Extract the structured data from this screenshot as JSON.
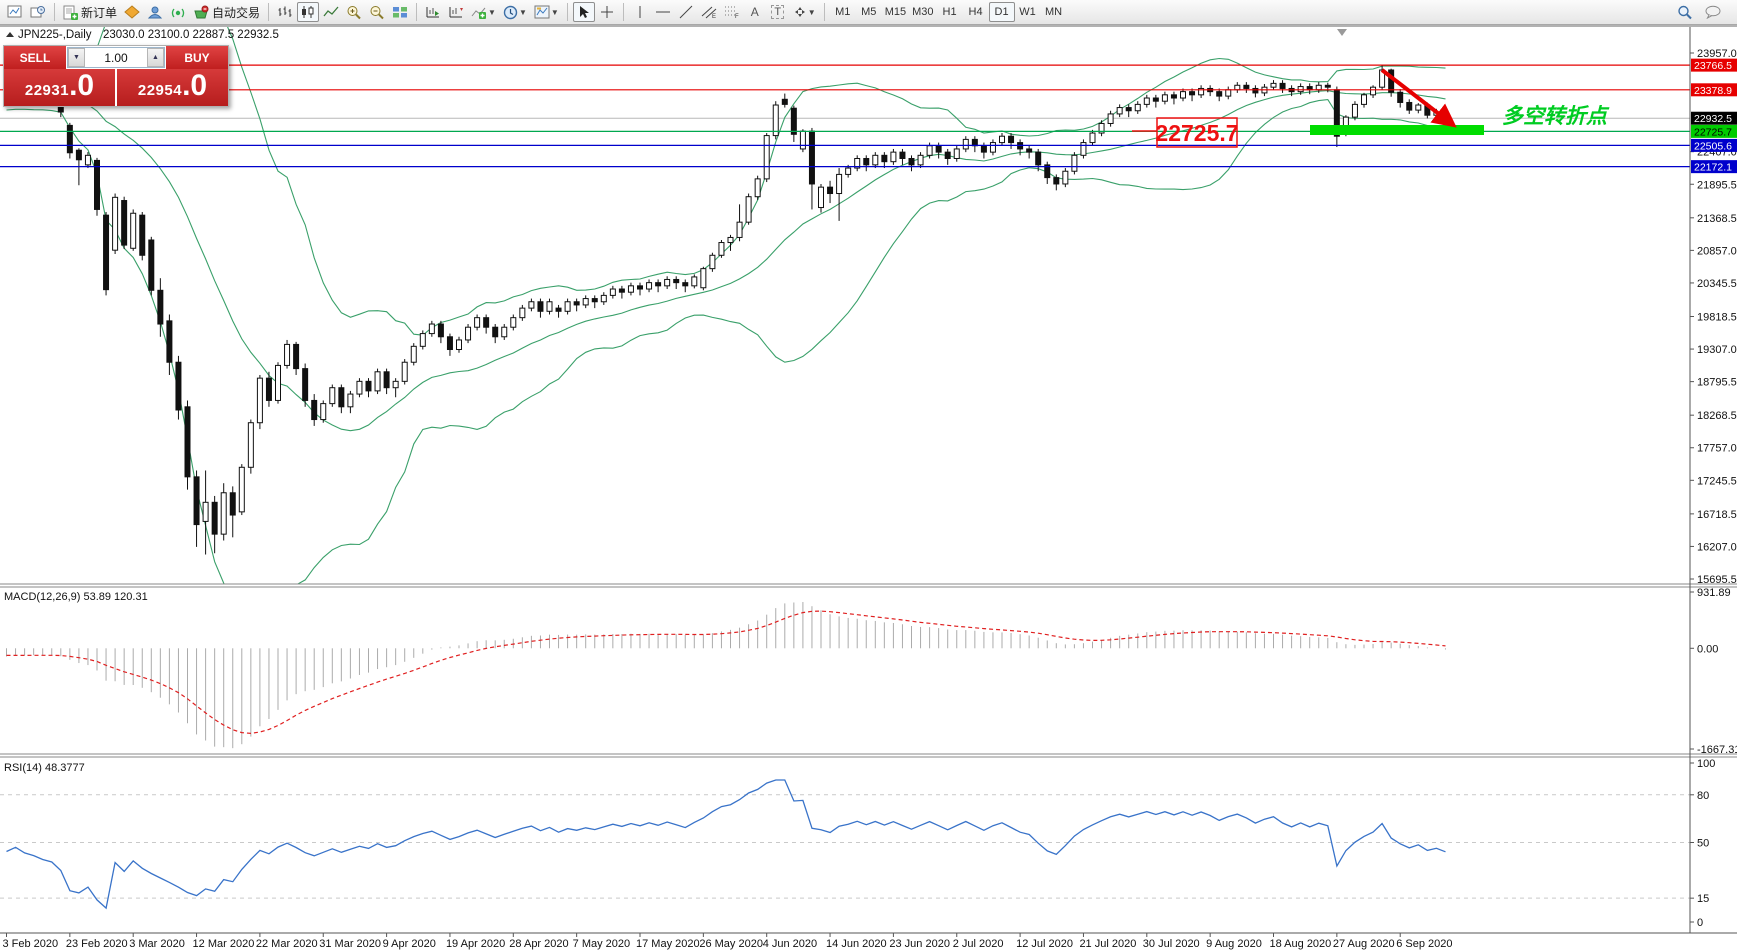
{
  "toolbar": {
    "new_order_label": "新订单",
    "autotrading_label": "自动交易",
    "timeframes": [
      "M1",
      "M5",
      "M15",
      "M30",
      "H1",
      "H4",
      "D1",
      "W1",
      "MN"
    ],
    "active_timeframe": "D1"
  },
  "chart": {
    "title": "JPN225-,Daily",
    "ohlc_line": "23030.0 23100.0 22887.5 22932.5",
    "current_price": 22932.5
  },
  "trade_panel": {
    "sell_label": "SELL",
    "buy_label": "BUY",
    "volume": "1.00",
    "sell_price_main": "22931",
    "sell_price_big": ".0",
    "buy_price_main": "22954",
    "buy_price_big": ".0"
  },
  "price_axis": {
    "ticks": [
      "23957.0",
      "22407.0",
      "21895.5",
      "21368.5",
      "20857.0",
      "20345.5",
      "19818.5",
      "19307.0",
      "18795.5",
      "18268.5",
      "17757.0",
      "17245.5",
      "16718.5",
      "16207.0",
      "15695.5"
    ],
    "badges": [
      {
        "text": "23766.5",
        "price": 23766.5,
        "bg": "#e60000",
        "fg": "#ffffff"
      },
      {
        "text": "23378.9",
        "price": 23378.9,
        "bg": "#e60000",
        "fg": "#ffffff"
      },
      {
        "text": "22932.5",
        "price": 22932.5,
        "bg": "#000000",
        "fg": "#ffffff"
      },
      {
        "text": "22725.7",
        "price": 22725.7,
        "bg": "#00cc00",
        "fg": "#000000"
      },
      {
        "text": "22505.6",
        "price": 22505.6,
        "bg": "#0000cc",
        "fg": "#ffffff"
      },
      {
        "text": "22172.1",
        "price": 22172.1,
        "bg": "#0000cc",
        "fg": "#ffffff"
      }
    ]
  },
  "levels": [
    {
      "price": 23766.5,
      "color": "#e60000"
    },
    {
      "price": 23378.9,
      "color": "#e60000"
    },
    {
      "price": 22725.7,
      "color": "#00a84f"
    },
    {
      "price": 22505.6,
      "color": "#0000cc"
    },
    {
      "price": 22172.1,
      "color": "#0000cc"
    }
  ],
  "annotations": {
    "price_box_text": "22725.7",
    "note_text": "多空转折点",
    "note_color": "#00cc22",
    "box_color": "#ee1111",
    "zone_color": "#00dd00",
    "arrow_color": "#e60000"
  },
  "indicators": {
    "macd_label": "MACD(12,26,9) 53.89 120.31",
    "macd_axis": [
      "931.89",
      "0.00",
      "-1667.31"
    ],
    "macd_params": [
      12,
      26,
      9
    ],
    "rsi_label": "RSI(14) 48.3777",
    "rsi_axis": [
      "100",
      "80",
      "50",
      "15",
      "0"
    ],
    "rsi_levels": [
      80,
      50,
      15
    ],
    "rsi_period": 14,
    "bollinger": {
      "period": 20,
      "deviation": 2,
      "color": "#3aa06a"
    }
  },
  "time_axis": {
    "labels": [
      "3 Feb 2020",
      "23 Feb 2020",
      "3 Mar 2020",
      "12 Mar 2020",
      "22 Mar 2020",
      "31 Mar 2020",
      "9 Apr 2020",
      "19 Apr 2020",
      "28 Apr 2020",
      "7 May 2020",
      "17 May 2020",
      "26 May 2020",
      "4 Jun 2020",
      "14 Jun 2020",
      "23 Jun 2020",
      "2 Jul 2020",
      "12 Jul 2020",
      "21 Jul 2020",
      "30 Jul 2020",
      "9 Aug 2020",
      "18 Aug 2020",
      "27 Aug 2020",
      "6 Sep 2020"
    ]
  },
  "chart_data": {
    "type": "candlestick",
    "symbol": "JPN225-",
    "timeframe": "Daily",
    "last_ohlc": {
      "open": 23030.0,
      "high": 23100.0,
      "low": 22887.5,
      "close": 22932.5
    },
    "price_range": [
      15695.5,
      23957.0
    ],
    "warmup_bars": 30,
    "candles": [
      [
        23620,
        23720,
        23560,
        23680
      ],
      [
        23680,
        23800,
        23630,
        23760
      ],
      [
        23760,
        23870,
        23710,
        23830
      ],
      [
        23830,
        23940,
        23780,
        23900
      ],
      [
        23900,
        24000,
        23850,
        23960
      ],
      [
        23960,
        24060,
        23910,
        24020
      ],
      [
        24020,
        24070,
        23900,
        23950
      ],
      [
        23950,
        24080,
        23900,
        24040
      ],
      [
        24040,
        24090,
        23920,
        23970
      ],
      [
        23970,
        24020,
        23830,
        23880
      ],
      [
        23880,
        23930,
        23750,
        23800
      ],
      [
        23800,
        23910,
        23750,
        23860
      ],
      [
        23860,
        23900,
        23730,
        23780
      ],
      [
        23780,
        23830,
        23650,
        23700
      ],
      [
        23700,
        23810,
        23650,
        23760
      ],
      [
        23760,
        23800,
        23610,
        23660
      ],
      [
        23660,
        23770,
        23610,
        23720
      ],
      [
        23720,
        23760,
        23570,
        23620
      ],
      [
        23620,
        23670,
        23510,
        23560
      ],
      [
        23560,
        23670,
        23510,
        23620
      ],
      [
        23620,
        23660,
        23470,
        23520
      ],
      [
        23520,
        23570,
        23400,
        23450
      ],
      [
        23450,
        23500,
        23330,
        23380
      ],
      [
        23380,
        23430,
        23250,
        23300
      ],
      [
        23300,
        23410,
        23250,
        23360
      ],
      [
        23360,
        23400,
        23210,
        23260
      ],
      [
        23260,
        23310,
        23130,
        23180
      ],
      [
        23180,
        23290,
        23130,
        23240
      ],
      [
        23240,
        23280,
        23110,
        23160
      ],
      [
        23160,
        23330,
        23110,
        23280
      ],
      [
        23280,
        23400,
        23230,
        23350
      ],
      [
        23350,
        23450,
        23300,
        23400
      ],
      [
        23400,
        23440,
        23270,
        23320
      ],
      [
        23320,
        23370,
        23230,
        23280
      ],
      [
        23280,
        23330,
        23170,
        23220
      ],
      [
        23220,
        23270,
        23130,
        23180
      ],
      [
        23180,
        23210,
        22950,
        23030
      ],
      [
        22820,
        22860,
        22300,
        22390
      ],
      [
        22430,
        22460,
        21880,
        22280
      ],
      [
        22200,
        22400,
        22150,
        22350
      ],
      [
        22270,
        22310,
        21400,
        21500
      ],
      [
        21410,
        21460,
        20150,
        20240
      ],
      [
        20860,
        21750,
        20800,
        21690
      ],
      [
        21640,
        21700,
        20880,
        20940
      ],
      [
        20890,
        21500,
        20850,
        21440
      ],
      [
        21410,
        21460,
        20700,
        20780
      ],
      [
        21020,
        21070,
        20150,
        20230
      ],
      [
        20230,
        20420,
        19500,
        19700
      ],
      [
        19750,
        19850,
        18900,
        19100
      ],
      [
        19100,
        19200,
        18200,
        18350
      ],
      [
        18400,
        18500,
        17100,
        17300
      ],
      [
        17300,
        17400,
        16200,
        16550
      ],
      [
        16600,
        17400,
        16080,
        16900
      ],
      [
        16900,
        17000,
        16100,
        16400
      ],
      [
        16400,
        17200,
        16300,
        17050
      ],
      [
        17050,
        17150,
        16350,
        16700
      ],
      [
        16750,
        17500,
        16700,
        17450
      ],
      [
        17450,
        18200,
        17350,
        18150
      ],
      [
        18150,
        18900,
        18050,
        18850
      ],
      [
        18850,
        18950,
        18400,
        18500
      ],
      [
        18500,
        19100,
        18450,
        19050
      ],
      [
        19050,
        19450,
        19000,
        19380
      ],
      [
        19380,
        19420,
        18900,
        19000
      ],
      [
        19000,
        19080,
        18400,
        18500
      ],
      [
        18500,
        18600,
        18100,
        18200
      ],
      [
        18200,
        18500,
        18150,
        18450
      ],
      [
        18450,
        18750,
        18400,
        18700
      ],
      [
        18700,
        18750,
        18300,
        18400
      ],
      [
        18400,
        18650,
        18300,
        18600
      ],
      [
        18600,
        18850,
        18550,
        18800
      ],
      [
        18800,
        18850,
        18550,
        18650
      ],
      [
        18650,
        19000,
        18600,
        18950
      ],
      [
        18950,
        19000,
        18600,
        18700
      ],
      [
        18700,
        18850,
        18550,
        18800
      ],
      [
        18800,
        19150,
        18750,
        19100
      ],
      [
        19100,
        19400,
        19050,
        19350
      ],
      [
        19350,
        19600,
        19300,
        19550
      ],
      [
        19550,
        19750,
        19500,
        19700
      ],
      [
        19700,
        19750,
        19400,
        19500
      ],
      [
        19500,
        19550,
        19200,
        19300
      ],
      [
        19300,
        19500,
        19250,
        19450
      ],
      [
        19450,
        19700,
        19400,
        19650
      ],
      [
        19650,
        19850,
        19600,
        19800
      ],
      [
        19800,
        19850,
        19550,
        19650
      ],
      [
        19650,
        19700,
        19400,
        19500
      ],
      [
        19500,
        19700,
        19450,
        19650
      ],
      [
        19650,
        19850,
        19600,
        19800
      ],
      [
        19800,
        20000,
        19750,
        19950
      ],
      [
        19950,
        20100,
        19900,
        20050
      ],
      [
        20050,
        20100,
        19800,
        19900
      ],
      [
        19900,
        20100,
        19850,
        20050
      ],
      [
        19950,
        20000,
        19800,
        19900
      ],
      [
        19900,
        20100,
        19850,
        20050
      ],
      [
        20050,
        20100,
        19900,
        20000
      ],
      [
        20000,
        20150,
        19950,
        20100
      ],
      [
        20100,
        20150,
        19950,
        20050
      ],
      [
        20050,
        20200,
        20000,
        20150
      ],
      [
        20150,
        20300,
        20100,
        20250
      ],
      [
        20250,
        20300,
        20100,
        20200
      ],
      [
        20200,
        20350,
        20150,
        20300
      ],
      [
        20300,
        20350,
        20150,
        20250
      ],
      [
        20250,
        20400,
        20200,
        20350
      ],
      [
        20350,
        20400,
        20200,
        20300
      ],
      [
        20300,
        20450,
        20250,
        20400
      ],
      [
        20400,
        20450,
        20250,
        20350
      ],
      [
        20350,
        20400,
        20200,
        20300
      ],
      [
        20300,
        20480,
        20260,
        20440
      ],
      [
        20270,
        20600,
        20230,
        20570
      ],
      [
        20570,
        20820,
        20520,
        20780
      ],
      [
        20780,
        21020,
        20740,
        20980
      ],
      [
        20980,
        21100,
        20850,
        21060
      ],
      [
        21060,
        21580,
        21000,
        21300
      ],
      [
        21300,
        21750,
        21260,
        21700
      ],
      [
        21700,
        22030,
        21650,
        21980
      ],
      [
        21980,
        22700,
        21930,
        22660
      ],
      [
        22660,
        23200,
        22600,
        23140
      ],
      [
        23230,
        23320,
        23100,
        23150
      ],
      [
        23090,
        23130,
        22560,
        22680
      ],
      [
        22450,
        22760,
        22400,
        22730
      ],
      [
        22730,
        22780,
        21500,
        21900
      ],
      [
        21530,
        21900,
        21450,
        21850
      ],
      [
        21850,
        21950,
        21600,
        21750
      ],
      [
        21750,
        22150,
        21320,
        22050
      ],
      [
        22050,
        22200,
        22000,
        22150
      ],
      [
        22150,
        22350,
        22100,
        22300
      ],
      [
        22300,
        22350,
        22100,
        22200
      ],
      [
        22200,
        22400,
        22150,
        22350
      ],
      [
        22350,
        22400,
        22150,
        22250
      ],
      [
        22250,
        22450,
        22200,
        22400
      ],
      [
        22400,
        22450,
        22200,
        22300
      ],
      [
        22300,
        22350,
        22100,
        22200
      ],
      [
        22200,
        22400,
        22150,
        22350
      ],
      [
        22350,
        22550,
        22300,
        22500
      ],
      [
        22500,
        22550,
        22300,
        22400
      ],
      [
        22400,
        22450,
        22200,
        22300
      ],
      [
        22300,
        22500,
        22250,
        22450
      ],
      [
        22450,
        22650,
        22400,
        22600
      ],
      [
        22600,
        22650,
        22400,
        22500
      ],
      [
        22500,
        22550,
        22300,
        22400
      ],
      [
        22400,
        22600,
        22350,
        22550
      ],
      [
        22550,
        22700,
        22500,
        22650
      ],
      [
        22650,
        22700,
        22450,
        22550
      ],
      [
        22550,
        22600,
        22350,
        22450
      ],
      [
        22450,
        22500,
        22300,
        22400
      ],
      [
        22400,
        22450,
        22100,
        22200
      ],
      [
        22200,
        22250,
        21900,
        22000
      ],
      [
        22000,
        22050,
        21800,
        21900
      ],
      [
        21900,
        22150,
        21850,
        22100
      ],
      [
        22100,
        22400,
        22050,
        22350
      ],
      [
        22350,
        22600,
        22300,
        22550
      ],
      [
        22550,
        22750,
        22500,
        22700
      ],
      [
        22700,
        22900,
        22650,
        22850
      ],
      [
        22850,
        23050,
        22800,
        23000
      ],
      [
        23000,
        23150,
        22950,
        23100
      ],
      [
        23100,
        23150,
        22950,
        23050
      ],
      [
        23050,
        23200,
        23000,
        23150
      ],
      [
        23150,
        23300,
        23100,
        23250
      ],
      [
        23250,
        23300,
        23100,
        23200
      ],
      [
        23200,
        23350,
        23150,
        23300
      ],
      [
        23300,
        23350,
        23150,
        23250
      ],
      [
        23250,
        23400,
        23200,
        23350
      ],
      [
        23350,
        23400,
        23200,
        23300
      ],
      [
        23300,
        23450,
        23250,
        23400
      ],
      [
        23400,
        23450,
        23280,
        23350
      ],
      [
        23350,
        23400,
        23200,
        23280
      ],
      [
        23280,
        23430,
        23230,
        23380
      ],
      [
        23380,
        23500,
        23330,
        23450
      ],
      [
        23450,
        23500,
        23330,
        23400
      ],
      [
        23400,
        23450,
        23260,
        23330
      ],
      [
        23330,
        23470,
        23280,
        23420
      ],
      [
        23420,
        23530,
        23380,
        23480
      ],
      [
        23480,
        23530,
        23330,
        23400
      ],
      [
        23400,
        23450,
        23280,
        23350
      ],
      [
        23350,
        23480,
        23300,
        23430
      ],
      [
        23430,
        23480,
        23310,
        23380
      ],
      [
        23380,
        23500,
        23330,
        23450
      ],
      [
        23450,
        23490,
        23340,
        23420
      ],
      [
        23380,
        23430,
        22480,
        22650
      ],
      [
        22700,
        22980,
        22650,
        22950
      ],
      [
        22950,
        23200,
        22900,
        23150
      ],
      [
        23150,
        23330,
        23100,
        23300
      ],
      [
        23300,
        23450,
        23250,
        23420
      ],
      [
        23420,
        23766,
        23380,
        23690
      ],
      [
        23690,
        23710,
        23270,
        23340
      ],
      [
        23340,
        23390,
        23100,
        23180
      ],
      [
        23180,
        23230,
        23000,
        23060
      ],
      [
        23060,
        23170,
        23010,
        23140
      ],
      [
        23140,
        23180,
        22930,
        22980
      ],
      [
        22980,
        23080,
        22930,
        23030
      ],
      [
        23030,
        23100,
        22887.5,
        22932.5
      ]
    ]
  }
}
